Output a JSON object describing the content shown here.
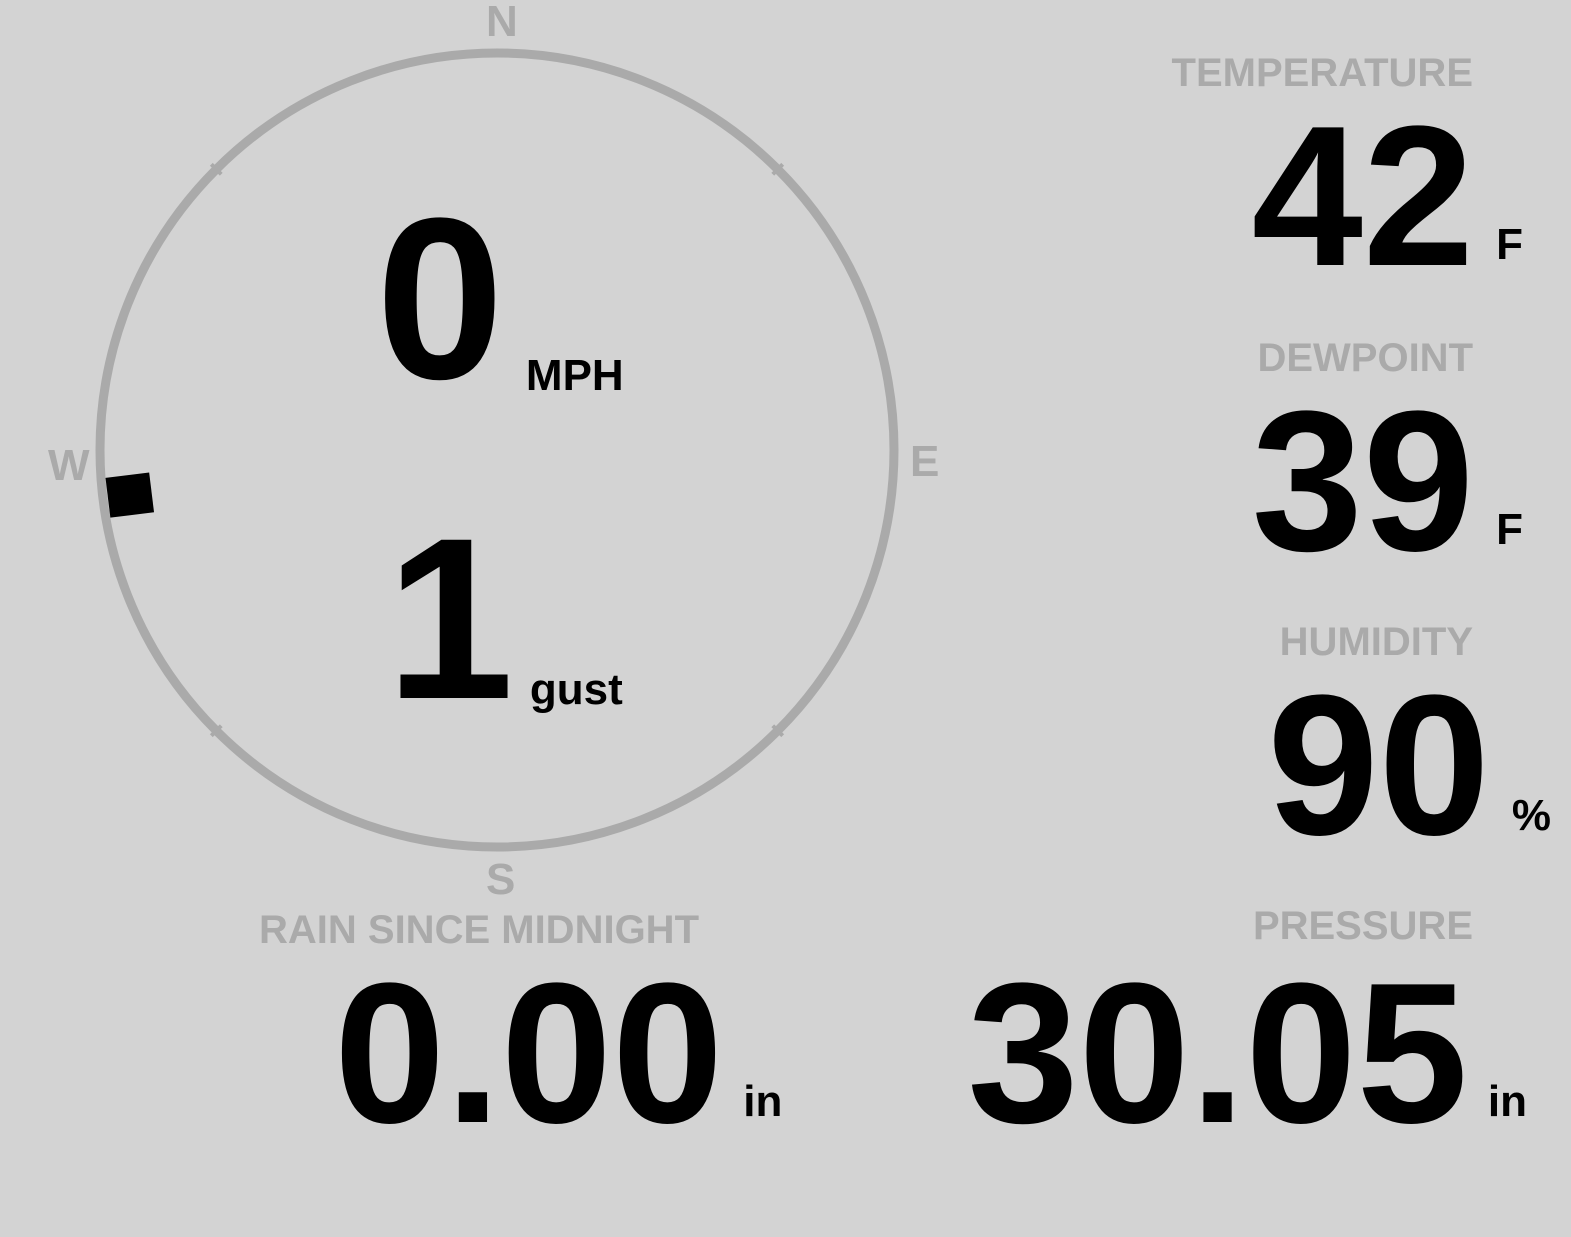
{
  "wind": {
    "compass": {
      "north": "N",
      "east": "E",
      "south": "S",
      "west": "W"
    },
    "direction_degrees": 263,
    "speed": "0",
    "speed_unit": "MPH",
    "gust": "1",
    "gust_unit": "gust"
  },
  "temperature": {
    "label": "TEMPERATURE",
    "value": "42",
    "unit": "F"
  },
  "dewpoint": {
    "label": "DEWPOINT",
    "value": "39",
    "unit": "F"
  },
  "humidity": {
    "label": "HUMIDITY",
    "value": "90",
    "unit": "%"
  },
  "rain": {
    "label": "RAIN SINCE MIDNIGHT",
    "value": "0.00",
    "unit": "in"
  },
  "pressure": {
    "label": "PRESSURE",
    "value": "30.05",
    "unit": "in"
  },
  "colors": {
    "background": "#d3d3d3",
    "label": "#aaaaaa",
    "value": "#000000",
    "ring": "#aaaaaa"
  }
}
